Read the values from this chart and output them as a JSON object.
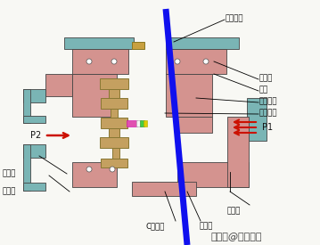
{
  "bg_color": "#f8f8f4",
  "white": "#ffffff",
  "pink": "#d4938f",
  "pink_light": "#dba8a8",
  "teal": "#7ab5b5",
  "teal_light": "#9ecfcf",
  "tan": "#c4a060",
  "tan_dark": "#a07840",
  "blue_line": "#1010ee",
  "arrow_red": "#cc1100",
  "gold": "#c8a040",
  "labels": {
    "shaft_seal": "轴封膜片",
    "seal_ring": "密封圈",
    "silicone": "硅油",
    "metal_diaphragm": "金属膜片",
    "diaphragm_core": "膜盒硬芯",
    "p2": "P2",
    "p1": "P1",
    "low_pressure": "低压室",
    "diaphragm_body": "膜盒体",
    "high_pressure": "高压室",
    "main_rod": "主扛杆",
    "c_spring": "C型簧片"
  },
  "watermark": "搜狐号@立新电机"
}
